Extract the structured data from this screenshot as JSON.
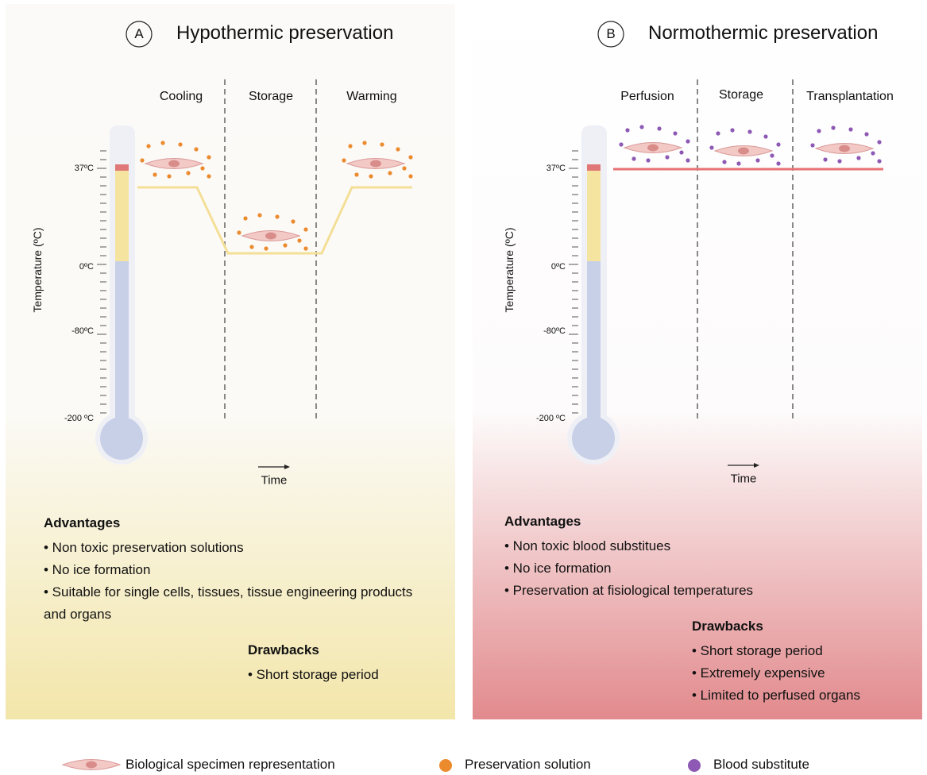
{
  "panels": [
    {
      "letter": "A",
      "title": "Hypothermic preservation",
      "phases": [
        "Cooling",
        "Storage",
        "Warming"
      ],
      "y_axis_label": "Temperature (ºC)",
      "temperature_labels": [
        "37ºC",
        "0ºC",
        "-80ºC",
        "-200 ºC"
      ],
      "time_label": "Time",
      "advantages": {
        "heading": "Advantages",
        "items": [
          "• Non toxic preservation solutions",
          "• No ice formation",
          "• Suitable for single cells, tissues, tissue engineering products and organs"
        ]
      },
      "drawbacks": {
        "heading": "Drawbacks",
        "items": [
          "• Short storage period"
        ]
      }
    },
    {
      "letter": "B",
      "title": "Normothermic preservation",
      "phases": [
        "Perfusion",
        "Storage",
        "Transplantation"
      ],
      "y_axis_label": "Temperature (ºC)",
      "temperature_labels": [
        "37ºC",
        "0ºC",
        "-80ºC",
        "-200 ºC"
      ],
      "time_label": "Time",
      "advantages": {
        "heading": "Advantages",
        "items": [
          "• Non toxic blood substitues",
          "• No ice formation",
          "• Preservation at fisiological temperatures"
        ]
      },
      "drawbacks": {
        "heading": "Drawbacks",
        "items": [
          "• Short storage period",
          "• Extremely expensive",
          "• Limited to perfused organs"
        ]
      }
    }
  ],
  "legend": [
    "Biological specimen representation",
    "Preservation solution",
    "Blood substitute"
  ]
}
